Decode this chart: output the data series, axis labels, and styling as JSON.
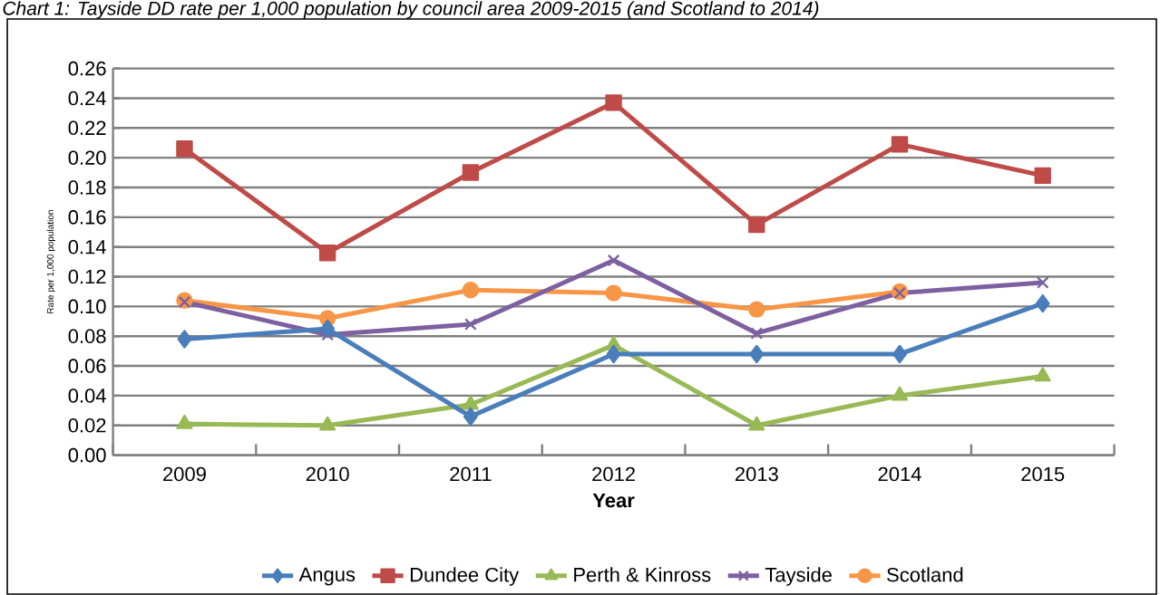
{
  "chart_data": {
    "type": "line",
    "title": "Chart 1: Tayside DD rate per 1,000 population by council area 2009-2015 (and Scotland to 2014)",
    "xlabel": "Year",
    "ylabel": "Rate per 1,000 population",
    "categories": [
      "2009",
      "2010",
      "2011",
      "2012",
      "2013",
      "2014",
      "2015"
    ],
    "series": [
      {
        "name": "Angus",
        "color": "#4a7ebb",
        "marker": "diamond",
        "values": [
          0.078,
          0.085,
          0.026,
          0.068,
          0.068,
          0.068,
          0.102
        ]
      },
      {
        "name": "Dundee City",
        "color": "#be4b48",
        "marker": "square",
        "values": [
          0.206,
          0.136,
          0.19,
          0.237,
          0.155,
          0.209,
          0.188
        ]
      },
      {
        "name": "Perth & Kinross",
        "color": "#98b954",
        "marker": "triangle",
        "values": [
          0.021,
          0.02,
          0.034,
          0.074,
          0.02,
          0.04,
          0.053
        ]
      },
      {
        "name": "Tayside",
        "color": "#7d60a0",
        "marker": "cross",
        "values": [
          0.103,
          0.081,
          0.088,
          0.131,
          0.082,
          0.109,
          0.116
        ]
      },
      {
        "name": "Scotland",
        "color": "#f79646",
        "marker": "circle",
        "values": [
          0.104,
          0.092,
          0.111,
          0.109,
          0.098,
          0.11,
          null
        ]
      }
    ],
    "ylim": [
      0,
      0.26
    ],
    "yticks": [
      {
        "value": 0,
        "label": "0.00"
      },
      {
        "value": 0.02,
        "label": "0.02"
      },
      {
        "value": 0.04,
        "label": "0.04"
      },
      {
        "value": 0.06,
        "label": "0.06"
      },
      {
        "value": 0.08,
        "label": "0.08"
      },
      {
        "value": 0.1,
        "label": "0.10"
      },
      {
        "value": 0.12,
        "label": "0.12"
      },
      {
        "value": 0.14,
        "label": "0.14"
      },
      {
        "value": 0.16,
        "label": "0.16"
      },
      {
        "value": 0.18,
        "label": "0.18"
      },
      {
        "value": 0.2,
        "label": "0.20"
      },
      {
        "value": 0.22,
        "label": "0.22"
      },
      {
        "value": 0.24,
        "label": "0.24"
      },
      {
        "value": 0.26,
        "label": "0.26"
      }
    ],
    "grid": "y",
    "legend": "bottom",
    "line_style": "solid"
  }
}
